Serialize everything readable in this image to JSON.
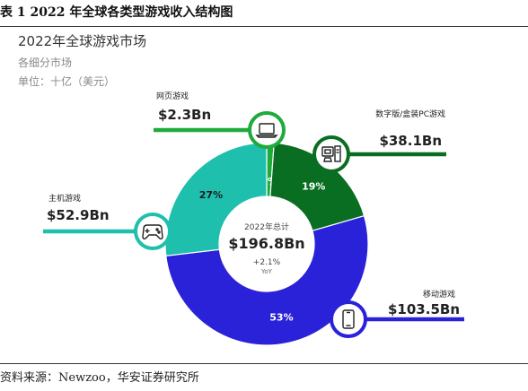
{
  "caption": "表 1 2022 年全球各类型游戏收入结构图",
  "header": {
    "title": "2022年全球游戏市场",
    "subtitle": "各细分市场",
    "unit": "单位：十亿（美元）"
  },
  "source": "资料来源：Newzoo，华安证券研究所",
  "chart_data": {
    "type": "pie",
    "donut": true,
    "title": "2022年全球游戏市场",
    "subtitle": "各细分市场",
    "unit": "单位：十亿（美元）",
    "center": {
      "label": "2022年总计",
      "total": "$196.8Bn",
      "growth": "+2.1%",
      "growth_label": "YoY"
    },
    "slices": [
      {
        "name": "网页游戏",
        "value": 2.3,
        "value_label": "$2.3Bn",
        "percent": 1,
        "percent_label": "1%",
        "color": "#1faa3c",
        "icon": "laptop-icon"
      },
      {
        "name": "数字版/盒装PC游戏",
        "value": 38.1,
        "value_label": "$38.1Bn",
        "percent": 19,
        "percent_label": "19%",
        "color": "#0a6e22",
        "icon": "desktop-pc-icon"
      },
      {
        "name": "移动游戏",
        "value": 103.5,
        "value_label": "$103.5Bn",
        "percent": 53,
        "percent_label": "53%",
        "color": "#2a22d8",
        "icon": "smartphone-icon"
      },
      {
        "name": "主机游戏",
        "value": 52.9,
        "value_label": "$52.9Bn",
        "percent": 27,
        "percent_label": "27%",
        "color": "#1fbfae",
        "icon": "gamepad-icon"
      }
    ]
  }
}
